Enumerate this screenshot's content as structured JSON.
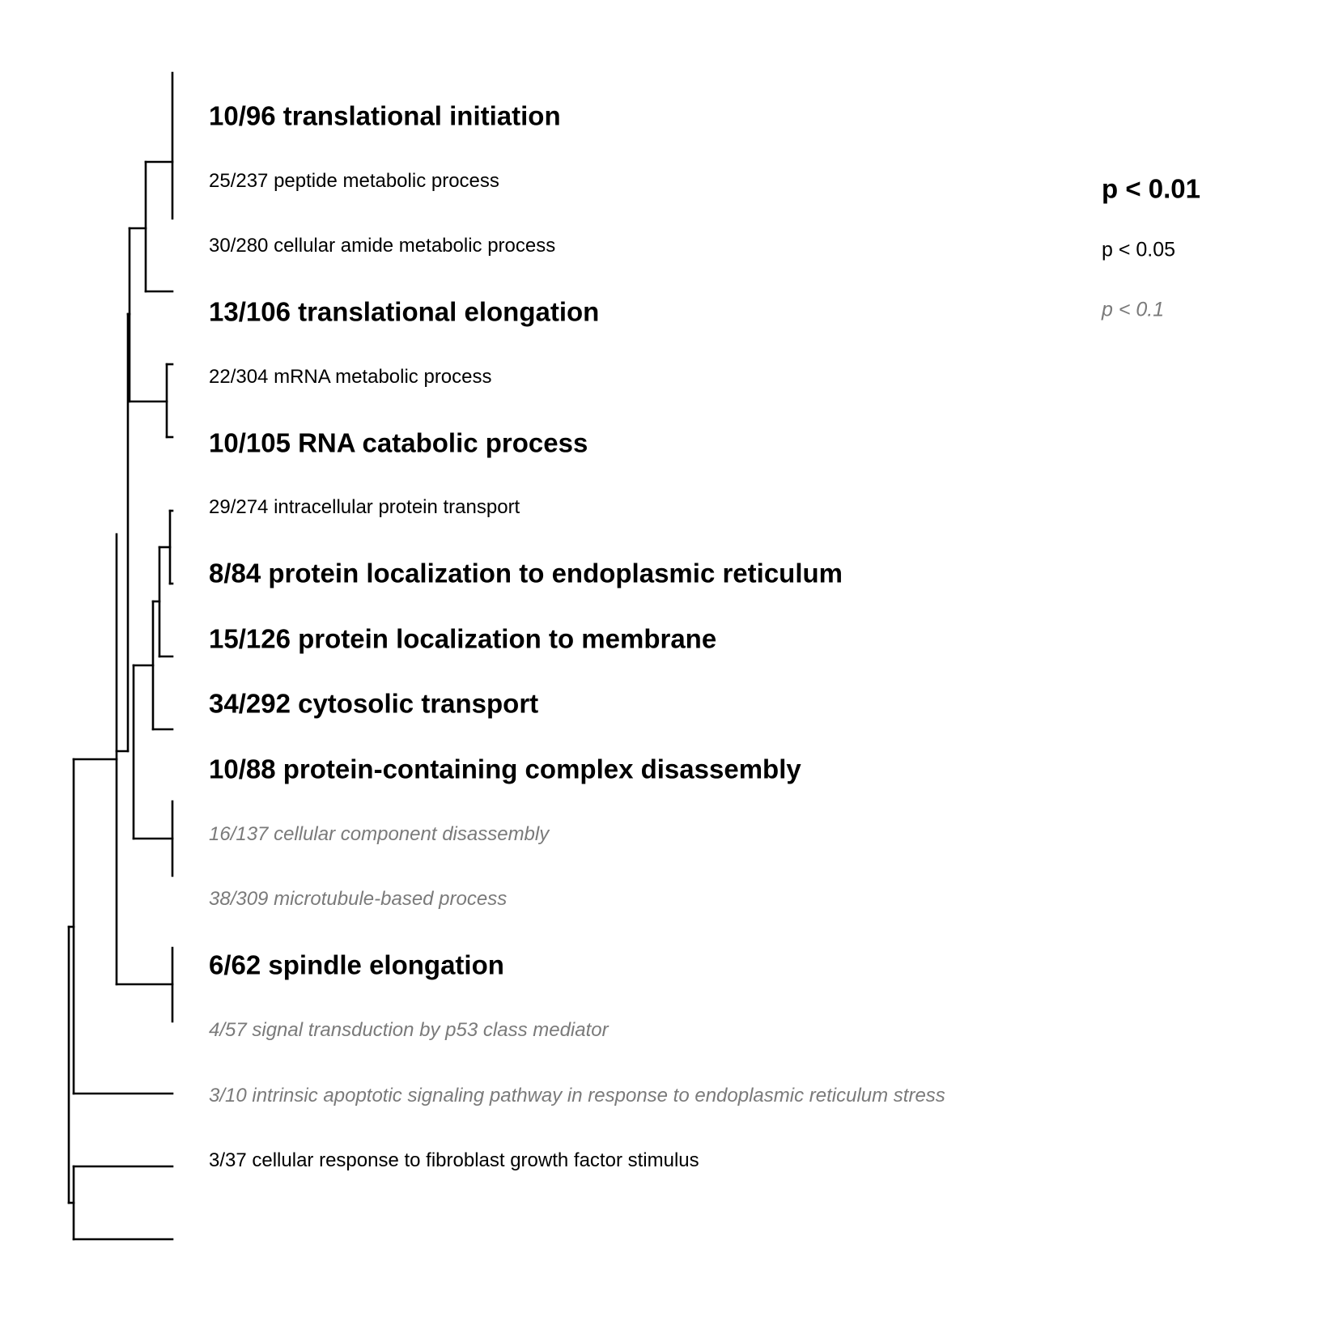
{
  "terms": [
    {
      "label": "10/96 translational initiation",
      "level": "high"
    },
    {
      "label": "25/237 peptide metabolic process",
      "level": "mid"
    },
    {
      "label": "30/280 cellular amide metabolic process",
      "level": "mid"
    },
    {
      "label": "13/106 translational elongation",
      "level": "high"
    },
    {
      "label": "22/304 mRNA metabolic process",
      "level": "mid"
    },
    {
      "label": "10/105 RNA catabolic process",
      "level": "high"
    },
    {
      "label": "29/274 intracellular protein transport",
      "level": "mid"
    },
    {
      "label": "8/84 protein localization to endoplasmic reticulum",
      "level": "high"
    },
    {
      "label": "15/126 protein localization to membrane",
      "level": "high"
    },
    {
      "label": "34/292 cytosolic transport",
      "level": "high"
    },
    {
      "label": "10/88 protein-containing complex disassembly",
      "level": "high"
    },
    {
      "label": "16/137 cellular component disassembly",
      "level": "low"
    },
    {
      "label": "38/309 microtubule-based process",
      "level": "low"
    },
    {
      "label": "6/62 spindle elongation",
      "level": "high"
    },
    {
      "label": "4/57 signal transduction by p53 class mediator",
      "level": "low"
    },
    {
      "label": "3/10 intrinsic apoptotic signaling pathway in response to endoplasmic reticulum stress",
      "level": "low"
    },
    {
      "label": "3/37 cellular response to fibroblast growth factor stimulus",
      "level": "mid"
    }
  ],
  "legend": {
    "high": "p < 0.01",
    "mid": "p < 0.05",
    "low": "p < 0.1"
  },
  "colors": {
    "significant": "#000000",
    "weak": "#7a7a7a",
    "tree": "#000000"
  }
}
